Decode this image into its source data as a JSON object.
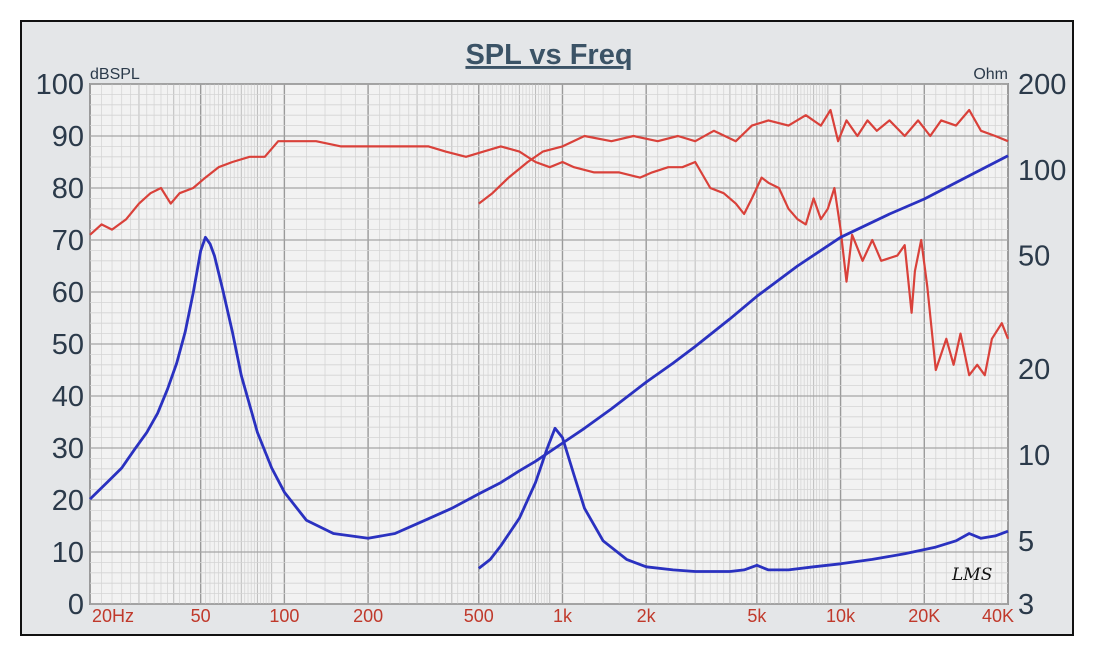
{
  "chart_data": {
    "type": "line",
    "title": "SPL vs Freq",
    "y_left_unit": "dBSPL",
    "y_right_unit": "Ohm",
    "y_left_ticks": [
      "100",
      "90",
      "80",
      "70",
      "60",
      "50",
      "40",
      "30",
      "20",
      "10",
      "0"
    ],
    "y_right_ticks": [
      "200",
      "100",
      "50",
      "20",
      "10",
      "5",
      "3"
    ],
    "x_ticks": [
      {
        "f": 20,
        "label": "20Hz"
      },
      {
        "f": 50,
        "label": "50"
      },
      {
        "f": 100,
        "label": "100"
      },
      {
        "f": 200,
        "label": "200"
      },
      {
        "f": 500,
        "label": "500"
      },
      {
        "f": 1000,
        "label": "1k"
      },
      {
        "f": 2000,
        "label": "2k"
      },
      {
        "f": 5000,
        "label": "5k"
      },
      {
        "f": 10000,
        "label": "10k"
      },
      {
        "f": 20000,
        "label": "20K"
      },
      {
        "f": 40000,
        "label": "40K"
      }
    ],
    "xlim": [
      20,
      40000
    ],
    "ylim_left": [
      0,
      100
    ],
    "ylim_right": [
      3,
      200
    ],
    "x_scale": "log",
    "y_right_scale": "log",
    "grid": true,
    "series": [
      {
        "axis": "left",
        "color": "#d9413a",
        "points": [
          [
            20,
            71
          ],
          [
            22,
            73
          ],
          [
            24,
            72
          ],
          [
            27,
            74
          ],
          [
            30,
            77
          ],
          [
            33,
            79
          ],
          [
            36,
            80
          ],
          [
            39,
            77
          ],
          [
            42,
            79
          ],
          [
            47,
            80
          ],
          [
            52,
            82
          ],
          [
            58,
            84
          ],
          [
            65,
            85
          ],
          [
            75,
            86
          ],
          [
            85,
            86
          ],
          [
            95,
            89
          ],
          [
            110,
            89
          ],
          [
            130,
            89
          ],
          [
            160,
            88
          ],
          [
            200,
            88
          ],
          [
            260,
            88
          ],
          [
            330,
            88
          ],
          [
            380,
            87
          ],
          [
            450,
            86
          ],
          [
            520,
            87
          ],
          [
            600,
            88
          ],
          [
            700,
            87
          ],
          [
            800,
            85
          ],
          [
            900,
            84
          ],
          [
            1000,
            85
          ],
          [
            1100,
            84
          ],
          [
            1300,
            83
          ],
          [
            1600,
            83
          ],
          [
            1900,
            82
          ],
          [
            2100,
            83
          ],
          [
            2400,
            84
          ],
          [
            2700,
            84
          ],
          [
            3000,
            85
          ],
          [
            3400,
            80
          ],
          [
            3800,
            79
          ],
          [
            4200,
            77
          ],
          [
            4500,
            75
          ],
          [
            4800,
            78
          ],
          [
            5200,
            82
          ],
          [
            5500,
            81
          ],
          [
            6000,
            80
          ],
          [
            6500,
            76
          ],
          [
            7000,
            74
          ],
          [
            7500,
            73
          ],
          [
            8000,
            78
          ],
          [
            8500,
            74
          ],
          [
            9000,
            76
          ],
          [
            9500,
            80
          ],
          [
            10000,
            72
          ],
          [
            10500,
            62
          ],
          [
            11000,
            71
          ],
          [
            12000,
            66
          ],
          [
            13000,
            70
          ],
          [
            14000,
            66
          ],
          [
            16000,
            67
          ],
          [
            17000,
            69
          ],
          [
            18000,
            56
          ],
          [
            18500,
            64
          ],
          [
            19500,
            70
          ],
          [
            20500,
            61
          ],
          [
            22000,
            45
          ],
          [
            24000,
            51
          ],
          [
            25500,
            46
          ],
          [
            27000,
            52
          ],
          [
            29000,
            44
          ],
          [
            31000,
            46
          ],
          [
            33000,
            44
          ],
          [
            35000,
            51
          ],
          [
            38000,
            54
          ],
          [
            40000,
            51
          ]
        ]
      },
      {
        "axis": "left",
        "color": "#d9413a",
        "points": [
          [
            500,
            77
          ],
          [
            560,
            79
          ],
          [
            640,
            82
          ],
          [
            750,
            85
          ],
          [
            850,
            87
          ],
          [
            1000,
            88
          ],
          [
            1200,
            90
          ],
          [
            1500,
            89
          ],
          [
            1800,
            90
          ],
          [
            2200,
            89
          ],
          [
            2600,
            90
          ],
          [
            3000,
            89
          ],
          [
            3500,
            91
          ],
          [
            4200,
            89
          ],
          [
            4800,
            92
          ],
          [
            5500,
            93
          ],
          [
            6500,
            92
          ],
          [
            7500,
            94
          ],
          [
            8500,
            92
          ],
          [
            9200,
            95
          ],
          [
            9800,
            89
          ],
          [
            10500,
            93
          ],
          [
            11500,
            90
          ],
          [
            12500,
            93
          ],
          [
            13500,
            91
          ],
          [
            15000,
            93
          ],
          [
            17000,
            90
          ],
          [
            19000,
            93
          ],
          [
            21000,
            90
          ],
          [
            23000,
            93
          ],
          [
            26000,
            92
          ],
          [
            29000,
            95
          ],
          [
            32000,
            91
          ],
          [
            36000,
            90
          ],
          [
            40000,
            89
          ]
        ]
      },
      {
        "axis": "right",
        "color": "#2a31c0",
        "points": [
          [
            20,
            7.0
          ],
          [
            23,
            8.0
          ],
          [
            26,
            9.0
          ],
          [
            29,
            10.5
          ],
          [
            32,
            12
          ],
          [
            35,
            14
          ],
          [
            38,
            17
          ],
          [
            41,
            21
          ],
          [
            44,
            27
          ],
          [
            47,
            37
          ],
          [
            50,
            52
          ],
          [
            52,
            58
          ],
          [
            54,
            55
          ],
          [
            56,
            50
          ],
          [
            60,
            38
          ],
          [
            65,
            27
          ],
          [
            70,
            19
          ],
          [
            80,
            12
          ],
          [
            90,
            9
          ],
          [
            100,
            7.4
          ],
          [
            120,
            5.9
          ],
          [
            150,
            5.3
          ],
          [
            200,
            5.1
          ],
          [
            250,
            5.3
          ],
          [
            320,
            5.9
          ],
          [
            400,
            6.5
          ],
          [
            500,
            7.3
          ],
          [
            600,
            8.0
          ],
          [
            700,
            8.8
          ],
          [
            800,
            9.5
          ],
          [
            1000,
            11
          ],
          [
            1200,
            12.4
          ],
          [
            1500,
            14.5
          ],
          [
            2000,
            18
          ],
          [
            2500,
            21
          ],
          [
            3000,
            24
          ],
          [
            4000,
            30
          ],
          [
            5000,
            36
          ],
          [
            7000,
            46
          ],
          [
            10000,
            58
          ],
          [
            15000,
            70
          ],
          [
            20000,
            79
          ],
          [
            30000,
            97
          ],
          [
            40000,
            112
          ]
        ]
      },
      {
        "axis": "right",
        "color": "#2a31c0",
        "points": [
          [
            500,
            4.0
          ],
          [
            550,
            4.3
          ],
          [
            600,
            4.8
          ],
          [
            700,
            6.0
          ],
          [
            800,
            8.0
          ],
          [
            880,
            10.5
          ],
          [
            940,
            12.4
          ],
          [
            1000,
            11.5
          ],
          [
            1100,
            8.5
          ],
          [
            1200,
            6.5
          ],
          [
            1400,
            5.0
          ],
          [
            1700,
            4.3
          ],
          [
            2000,
            4.05
          ],
          [
            2500,
            3.95
          ],
          [
            3000,
            3.9
          ],
          [
            4000,
            3.9
          ],
          [
            4500,
            3.95
          ],
          [
            5000,
            4.1
          ],
          [
            5500,
            3.95
          ],
          [
            6500,
            3.95
          ],
          [
            8000,
            4.05
          ],
          [
            10000,
            4.15
          ],
          [
            13000,
            4.3
          ],
          [
            17000,
            4.5
          ],
          [
            22000,
            4.75
          ],
          [
            26000,
            5.0
          ],
          [
            29000,
            5.3
          ],
          [
            32000,
            5.1
          ],
          [
            36000,
            5.2
          ],
          [
            40000,
            5.4
          ]
        ]
      }
    ]
  },
  "logo_text": "LMS"
}
